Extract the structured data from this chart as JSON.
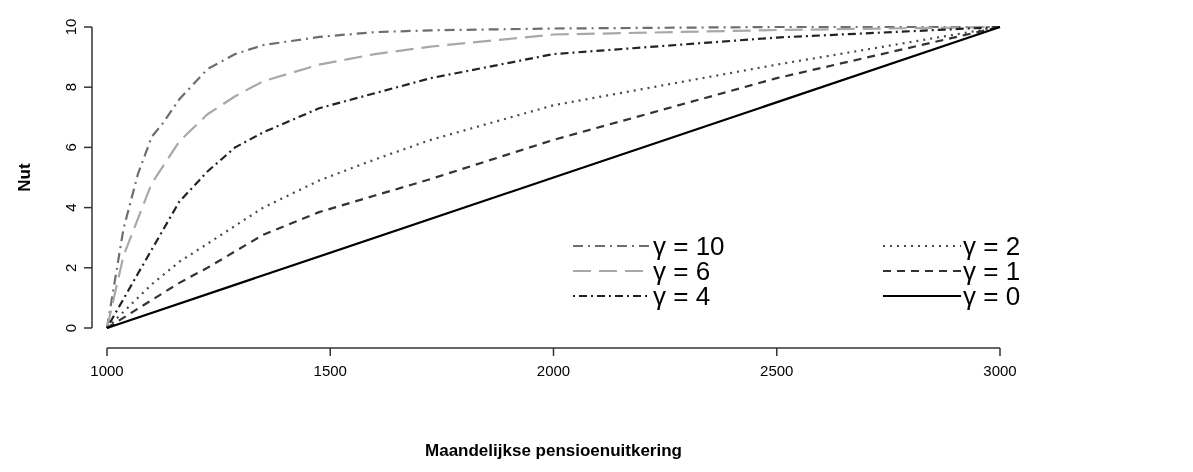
{
  "chart_data": {
    "type": "line",
    "xlabel": "Maandelijkse pensioenuitkering",
    "ylabel": "Nut",
    "xlim": [
      1000,
      3000
    ],
    "xticks": [
      1000,
      1500,
      2000,
      2500,
      3000
    ],
    "ylim": [
      0,
      10
    ],
    "yticks": [
      0,
      2,
      4,
      6,
      8,
      10
    ],
    "grid": false,
    "legend": "bottom right",
    "marker": "none",
    "series": [
      {
        "name": "γ = 10",
        "color": "#6e6e6e",
        "line_style": "dashdot",
        "x": [
          1000,
          1037,
          1069,
          1100,
          1125,
          1162,
          1225,
          1287,
          1350,
          1475,
          1600,
          1725,
          2000,
          2500,
          3000
        ],
        "values": [
          0,
          3.3,
          5.1,
          6.35,
          6.8,
          7.6,
          8.6,
          9.1,
          9.4,
          9.67,
          9.83,
          9.89,
          9.95,
          10,
          10
        ]
      },
      {
        "name": "γ = 6",
        "color": "#a8a8a8",
        "line_style": "longdash",
        "x": [
          1000,
          1037,
          1100,
          1162,
          1225,
          1287,
          1350,
          1475,
          1600,
          1725,
          2000,
          2500,
          3000
        ],
        "values": [
          0,
          2.4,
          4.8,
          6.2,
          7.1,
          7.7,
          8.2,
          8.75,
          9.1,
          9.35,
          9.75,
          9.9,
          10
        ]
      },
      {
        "name": "γ = 4",
        "color": "#222222",
        "line_style": "dotdash",
        "x": [
          1000,
          1069,
          1100,
          1162,
          1225,
          1287,
          1350,
          1475,
          1600,
          1725,
          2000,
          2500,
          3000
        ],
        "values": [
          0,
          1.8,
          2.6,
          4.2,
          5.2,
          6.0,
          6.5,
          7.3,
          7.8,
          8.3,
          9.1,
          9.65,
          10
        ]
      },
      {
        "name": "γ = 2",
        "color": "#4a4a4a",
        "line_style": "dotted",
        "x": [
          1000,
          1100,
          1162,
          1225,
          1350,
          1475,
          1600,
          1725,
          2000,
          2500,
          3000
        ],
        "values": [
          0,
          1.45,
          2.2,
          2.8,
          4.0,
          4.9,
          5.6,
          6.25,
          7.4,
          8.75,
          10
        ]
      },
      {
        "name": "γ = 1",
        "color": "#333333",
        "line_style": "dashed",
        "x": [
          1000,
          1162,
          1225,
          1350,
          1475,
          1600,
          1725,
          2000,
          2500,
          3000
        ],
        "values": [
          0,
          1.5,
          2.0,
          3.1,
          3.85,
          4.4,
          4.95,
          6.25,
          8.3,
          10
        ]
      },
      {
        "name": "γ = 0",
        "color": "#000000",
        "line_style": "solid",
        "x": [
          1000,
          2000,
          3000
        ],
        "values": [
          0,
          5,
          10
        ]
      }
    ]
  }
}
